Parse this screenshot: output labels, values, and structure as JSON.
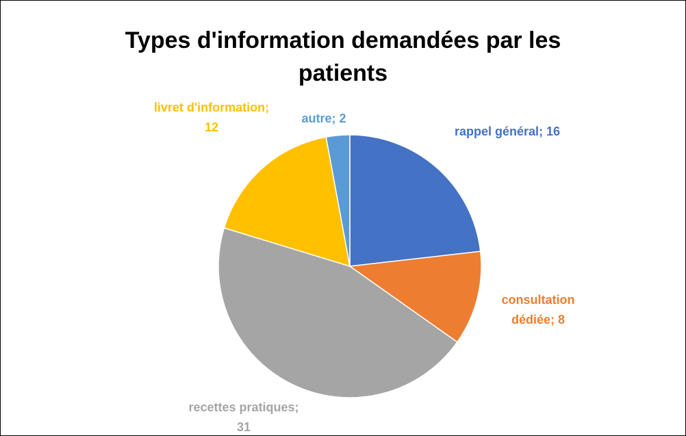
{
  "chart_data": {
    "type": "pie",
    "title": "Types d'information demandées par les patients",
    "values": [
      16,
      8,
      31,
      12,
      2
    ],
    "value_labels": [
      "rappel général; 16",
      "consultation dédiée; 8",
      "recettes pratiques; 31",
      "livret d'information; 12",
      "autre; 2"
    ],
    "colors": [
      "#4472c4",
      "#ed7d31",
      "#a5a5a5",
      "#ffc000",
      "#5b9bd5"
    ]
  }
}
